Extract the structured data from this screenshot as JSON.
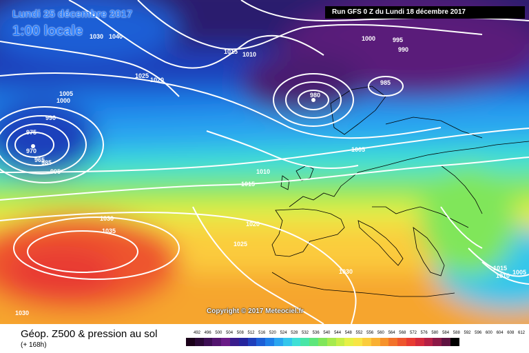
{
  "header": {
    "date": "Lundi 25 décembre 2017",
    "time": "1:00 locale",
    "run": "Run GFS 0 Z du Lundi 18 décembre 2017"
  },
  "copyright": "Copyright © 2017 Meteociel.fr",
  "footer": {
    "title": "Géop. Z500 & pression au sol",
    "subtitle": "(+ 168h)"
  },
  "legend": {
    "values": [
      "492",
      "496",
      "500",
      "504",
      "508",
      "512",
      "516",
      "520",
      "524",
      "528",
      "532",
      "536",
      "540",
      "544",
      "548",
      "552",
      "556",
      "560",
      "564",
      "568",
      "572",
      "576",
      "580",
      "584",
      "588",
      "592",
      "596",
      "600",
      "604",
      "608",
      "612"
    ],
    "colors": [
      "#1a0019",
      "#2a0836",
      "#3d0e54",
      "#53156f",
      "#6b1b87",
      "#3a1c8c",
      "#25249c",
      "#1f3fbb",
      "#1d5fd6",
      "#1f7fe8",
      "#2aa5f0",
      "#33c6ec",
      "#3ee0d6",
      "#47e6a7",
      "#5de67b",
      "#80e65a",
      "#a6ea4d",
      "#c7ee47",
      "#e6f046",
      "#f7e545",
      "#fbcc3c",
      "#f9b032",
      "#f6922a",
      "#f2722a",
      "#ee552d",
      "#e83b32",
      "#d42a3c",
      "#b51f45",
      "#8c1846",
      "#5f1240",
      "#000000"
    ]
  },
  "isobars": {
    "labels": [
      "1030",
      "1040",
      "1015",
      "1010",
      "1025",
      "1020",
      "1005",
      "1000",
      "990",
      "975",
      "970",
      "985",
      "995",
      "980",
      "1000",
      "995",
      "990",
      "985",
      "1005",
      "1010",
      "1015",
      "1020",
      "1025",
      "1030",
      "1035",
      "1030",
      "1030",
      "1015",
      "1010",
      "1005",
      "965"
    ]
  },
  "colors": {
    "title": "#2a7fff",
    "isobar": "#ffffff"
  }
}
